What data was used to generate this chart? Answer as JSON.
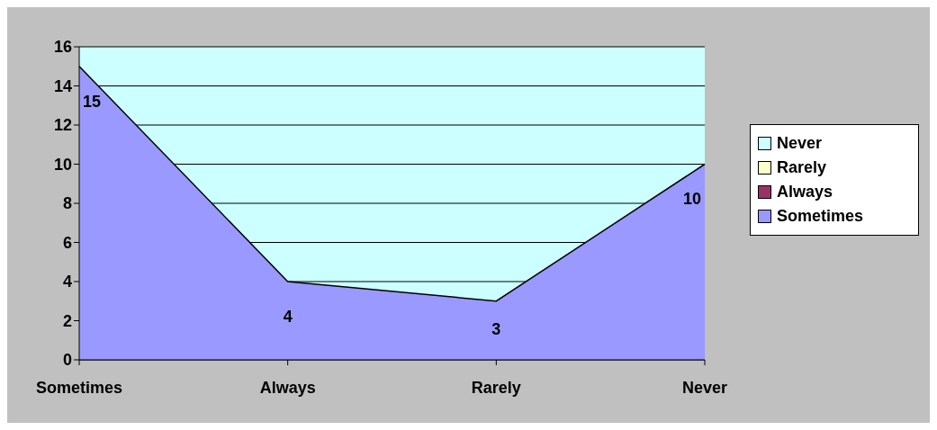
{
  "chart_data": {
    "type": "area",
    "categories": [
      "Sometimes",
      "Always",
      "Rarely",
      "Never"
    ],
    "series": [
      {
        "color": "#9999ff",
        "values": [
          15,
          4,
          3,
          10
        ],
        "colors": [
          "#9999ff",
          "#993366",
          "#ffffcc",
          "#ccffff"
        ]
      }
    ],
    "ylim": [
      0,
      16
    ],
    "yticks": [
      0,
      2,
      4,
      6,
      8,
      10,
      12,
      14,
      16
    ],
    "grid": "y",
    "data_labels": true
  }
}
